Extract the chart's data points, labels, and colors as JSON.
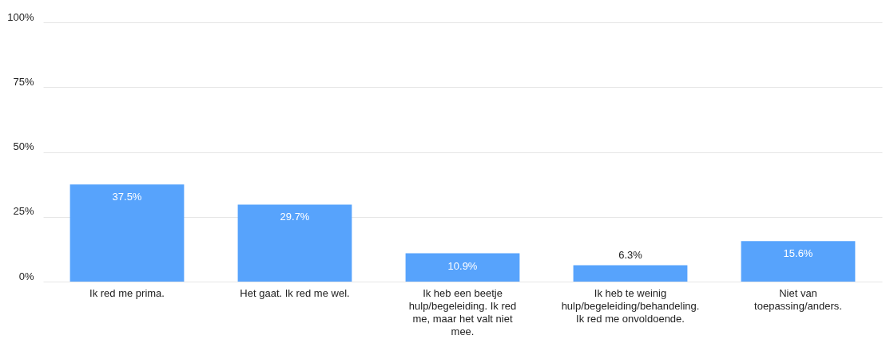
{
  "chart_data": {
    "type": "bar",
    "categories": [
      "Ik red me prima.",
      "Het gaat. Ik red me wel.",
      "Ik heb een beetje hulp/begeleiding. Ik red me, maar het valt niet mee.",
      "Ik heb te weinig hulp/begeleiding/behandeling. Ik red me onvoldoende.",
      "Niet van toepassing/anders."
    ],
    "values": [
      37.5,
      29.7,
      10.9,
      6.3,
      15.6
    ],
    "value_labels": [
      "37.5%",
      "29.7%",
      "10.9%",
      "6.3%",
      "15.6%"
    ],
    "color": "#57a3fc",
    "ylim": [
      0,
      100
    ],
    "yticks": [
      {
        "value": 0,
        "label": "0%"
      },
      {
        "value": 25,
        "label": "25%"
      },
      {
        "value": 50,
        "label": "50%"
      },
      {
        "value": 75,
        "label": "75%"
      },
      {
        "value": 100,
        "label": "100%"
      }
    ],
    "grid": "y"
  }
}
